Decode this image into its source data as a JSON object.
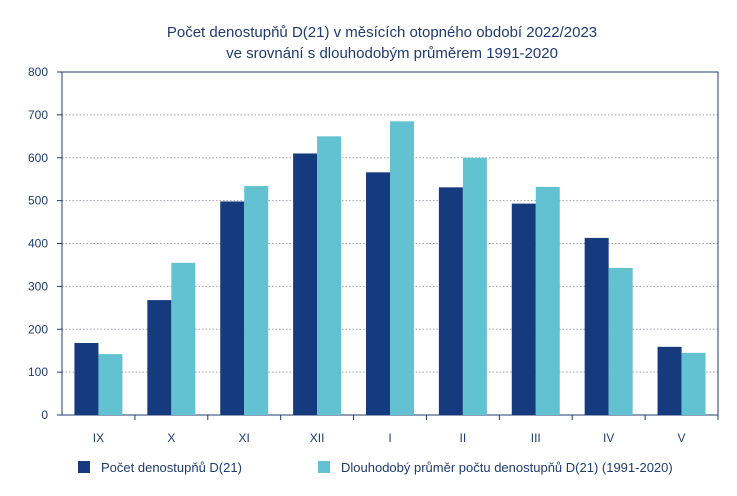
{
  "chart_data": {
    "type": "bar",
    "title_lines": [
      "Počet denostupňů D(21) v měsících otopného období 2022/2023",
      "ve srovnání s dlouhodobým průměrem 1991-2020"
    ],
    "categories": [
      "IX",
      "X",
      "XI",
      "XII",
      "I",
      "II",
      "III",
      "IV",
      "V"
    ],
    "series": [
      {
        "name": "Počet denostupňů D(21)",
        "color": "#163a7e",
        "values": [
          168,
          268,
          498,
          610,
          566,
          531,
          493,
          413,
          159
        ]
      },
      {
        "name": "Dlouhodobý průměr počtu denostupňů D(21) (1991-2020)",
        "color": "#62c2d2",
        "values": [
          142,
          355,
          534,
          650,
          685,
          600,
          532,
          343,
          145
        ]
      }
    ],
    "ylim": [
      0,
      800
    ],
    "yticks": [
      0,
      100,
      200,
      300,
      400,
      500,
      600,
      700,
      800
    ],
    "grid": true,
    "legend": "bottom"
  }
}
